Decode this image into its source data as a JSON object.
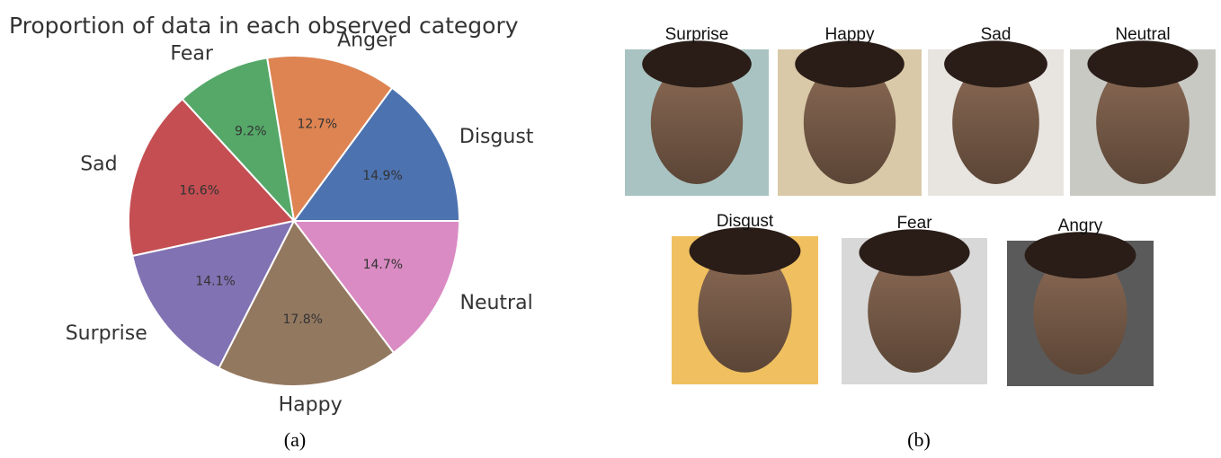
{
  "chart_data": {
    "type": "pie",
    "title": "Proportion of data in each observed category",
    "categories": [
      "Disgust",
      "Anger",
      "Fear",
      "Sad",
      "Surprise",
      "Happy",
      "Neutral"
    ],
    "values": [
      14.9,
      12.7,
      9.2,
      16.6,
      14.1,
      17.8,
      14.7
    ],
    "value_labels": [
      "14.9%",
      "12.7%",
      "9.2%",
      "16.6%",
      "14.1%",
      "17.8%",
      "14.7%"
    ],
    "colors": [
      "#4c72b0",
      "#dd8452",
      "#55a868",
      "#c44e52",
      "#8172b3",
      "#937860",
      "#da8bc3"
    ]
  },
  "photos": {
    "items": [
      {
        "label": "Surprise"
      },
      {
        "label": "Happy"
      },
      {
        "label": "Sad"
      },
      {
        "label": "Neutral"
      },
      {
        "label": "Disgust"
      },
      {
        "label": "Fear"
      },
      {
        "label": "Angry"
      }
    ]
  },
  "captions": [
    "(a)",
    "(b)"
  ]
}
